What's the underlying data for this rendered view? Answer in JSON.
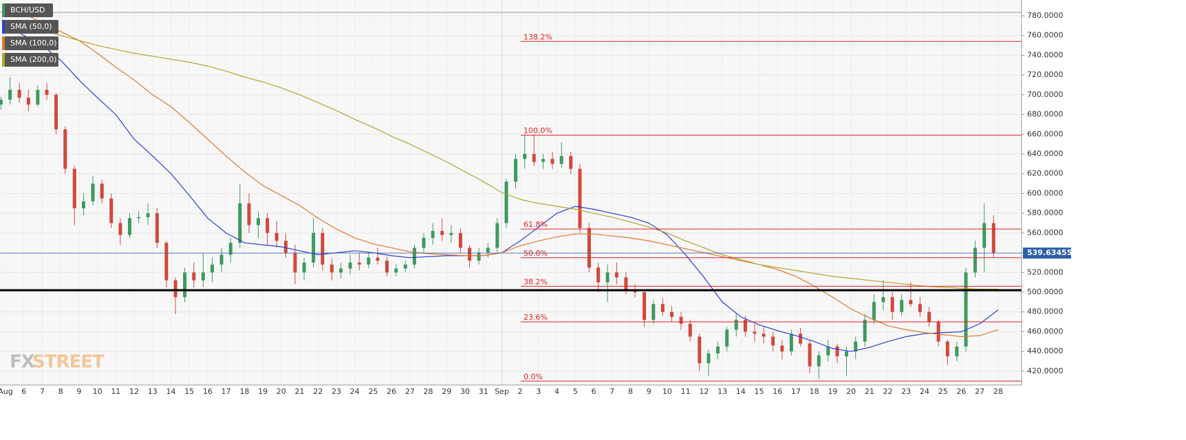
{
  "chart_data": {
    "type": "candlestick",
    "title": "BCH/USD",
    "categories": [
      "Aug",
      "6",
      "7",
      "8",
      "9",
      "10",
      "11",
      "12",
      "13",
      "14",
      "15",
      "16",
      "17",
      "18",
      "19",
      "20",
      "21",
      "22",
      "23",
      "24",
      "25",
      "26",
      "27",
      "28",
      "29",
      "30",
      "31",
      "Sep",
      "2",
      "3",
      "4",
      "5",
      "6",
      "7",
      "8",
      "9",
      "10",
      "11",
      "12",
      "13",
      "14",
      "15",
      "16",
      "17",
      "18",
      "19",
      "20",
      "21",
      "22",
      "23",
      "24",
      "25",
      "26",
      "27",
      "28"
    ],
    "ylim": [
      406,
      796
    ],
    "yticks": [
      {
        "value": 420,
        "label": "420.0000"
      },
      {
        "value": 440,
        "label": "440.0000"
      },
      {
        "value": 460,
        "label": "460.0000"
      },
      {
        "value": 480,
        "label": "480.0000"
      },
      {
        "value": 500,
        "label": "500.0000"
      },
      {
        "value": 520,
        "label": "520.0000"
      },
      {
        "value": 540,
        "label": "540.0000"
      },
      {
        "value": 560,
        "label": "560.0000"
      },
      {
        "value": 580,
        "label": "580.0000"
      },
      {
        "value": 600,
        "label": "600.0000"
      },
      {
        "value": 620,
        "label": "620.0000"
      },
      {
        "value": 640,
        "label": "640.0000"
      },
      {
        "value": 660,
        "label": "660.0000"
      },
      {
        "value": 680,
        "label": "680.0000"
      },
      {
        "value": 700,
        "label": "700.0000"
      },
      {
        "value": 720,
        "label": "720.0000"
      },
      {
        "value": 740,
        "label": "740.0000"
      },
      {
        "value": 760,
        "label": "760.0000"
      },
      {
        "value": 780,
        "label": "780.0000"
      }
    ],
    "grid": true,
    "up_color": "#3d9a5e",
    "down_color": "#d2473c",
    "ohlc": [
      [
        690,
        698,
        685,
        695
      ],
      [
        695,
        718,
        690,
        705
      ],
      [
        705,
        712,
        692,
        697
      ],
      [
        697,
        705,
        683,
        690
      ],
      [
        690,
        710,
        688,
        705
      ],
      [
        705,
        712,
        695,
        700
      ],
      [
        700,
        702,
        660,
        665
      ],
      [
        665,
        668,
        620,
        625
      ],
      [
        625,
        628,
        568,
        585
      ],
      [
        585,
        600,
        578,
        592
      ],
      [
        592,
        618,
        588,
        610
      ],
      [
        610,
        614,
        590,
        595
      ],
      [
        595,
        600,
        565,
        570
      ],
      [
        570,
        575,
        548,
        558
      ],
      [
        558,
        580,
        555,
        575
      ],
      [
        575,
        582,
        570,
        576
      ],
      [
        576,
        590,
        568,
        580
      ],
      [
        580,
        585,
        545,
        550
      ],
      [
        550,
        552,
        505,
        512
      ],
      [
        512,
        515,
        478,
        495
      ],
      [
        495,
        525,
        490,
        520
      ],
      [
        520,
        530,
        505,
        512
      ],
      [
        512,
        540,
        505,
        520
      ],
      [
        520,
        535,
        510,
        528
      ],
      [
        528,
        545,
        520,
        538
      ],
      [
        538,
        555,
        530,
        550
      ],
      [
        550,
        610,
        545,
        590
      ],
      [
        590,
        600,
        560,
        568
      ],
      [
        568,
        582,
        555,
        575
      ],
      [
        575,
        580,
        548,
        560
      ],
      [
        560,
        572,
        545,
        552
      ],
      [
        552,
        560,
        535,
        540
      ],
      [
        540,
        548,
        508,
        520
      ],
      [
        520,
        535,
        512,
        530
      ],
      [
        530,
        575,
        525,
        560
      ],
      [
        560,
        565,
        522,
        528
      ],
      [
        528,
        534,
        512,
        520
      ],
      [
        520,
        530,
        514,
        524
      ],
      [
        524,
        538,
        518,
        530
      ],
      [
        530,
        540,
        522,
        528
      ],
      [
        528,
        540,
        524,
        535
      ],
      [
        535,
        545,
        528,
        532
      ],
      [
        532,
        536,
        516,
        520
      ],
      [
        520,
        528,
        516,
        524
      ],
      [
        524,
        532,
        520,
        528
      ],
      [
        528,
        548,
        524,
        545
      ],
      [
        545,
        560,
        540,
        555
      ],
      [
        555,
        570,
        548,
        562
      ],
      [
        562,
        575,
        552,
        558
      ],
      [
        558,
        568,
        550,
        560
      ],
      [
        560,
        565,
        540,
        545
      ],
      [
        545,
        548,
        525,
        532
      ],
      [
        532,
        545,
        528,
        540
      ],
      [
        540,
        550,
        535,
        545
      ],
      [
        545,
        575,
        540,
        570
      ],
      [
        570,
        615,
        565,
        612
      ],
      [
        612,
        640,
        605,
        635
      ],
      [
        635,
        660,
        625,
        640
      ],
      [
        640,
        660,
        628,
        632
      ],
      [
        632,
        640,
        625,
        635
      ],
      [
        635,
        642,
        625,
        630
      ],
      [
        630,
        652,
        626,
        638
      ],
      [
        638,
        642,
        620,
        625
      ],
      [
        625,
        630,
        560,
        565
      ],
      [
        565,
        570,
        520,
        525
      ],
      [
        525,
        530,
        500,
        510
      ],
      [
        510,
        528,
        490,
        520
      ],
      [
        520,
        530,
        508,
        515
      ],
      [
        515,
        520,
        498,
        502
      ],
      [
        502,
        508,
        495,
        500
      ],
      [
        500,
        502,
        465,
        472
      ],
      [
        472,
        492,
        468,
        488
      ],
      [
        488,
        494,
        476,
        480
      ],
      [
        480,
        486,
        470,
        475
      ],
      [
        475,
        480,
        462,
        468
      ],
      [
        468,
        472,
        450,
        455
      ],
      [
        455,
        458,
        420,
        428
      ],
      [
        428,
        442,
        415,
        438
      ],
      [
        438,
        450,
        432,
        445
      ],
      [
        445,
        465,
        440,
        462
      ],
      [
        462,
        478,
        455,
        472
      ],
      [
        472,
        476,
        455,
        460
      ],
      [
        460,
        468,
        450,
        458
      ],
      [
        458,
        465,
        448,
        455
      ],
      [
        455,
        460,
        440,
        446
      ],
      [
        446,
        452,
        432,
        440
      ],
      [
        440,
        462,
        436,
        458
      ],
      [
        458,
        464,
        445,
        448
      ],
      [
        448,
        452,
        418,
        425
      ],
      [
        425,
        440,
        412,
        436
      ],
      [
        436,
        452,
        430,
        445
      ],
      [
        445,
        448,
        428,
        435
      ],
      [
        435,
        445,
        415,
        440
      ],
      [
        440,
        455,
        432,
        450
      ],
      [
        450,
        478,
        445,
        472
      ],
      [
        472,
        498,
        468,
        490
      ],
      [
        490,
        512,
        482,
        495
      ],
      [
        495,
        500,
        472,
        480
      ],
      [
        480,
        498,
        476,
        492
      ],
      [
        492,
        510,
        485,
        488
      ],
      [
        488,
        495,
        475,
        480
      ],
      [
        480,
        485,
        465,
        470
      ],
      [
        470,
        472,
        445,
        450
      ],
      [
        450,
        452,
        426,
        435
      ],
      [
        435,
        450,
        430,
        445
      ],
      [
        445,
        525,
        440,
        520
      ],
      [
        520,
        552,
        515,
        545
      ],
      [
        545,
        590,
        520,
        570
      ],
      [
        570,
        578,
        535,
        539.63455
      ]
    ],
    "series": [
      {
        "name": "SMA (50,0)",
        "color": "#2b3ed6",
        "values": [
          772,
          760,
          750,
          735,
          715,
          697,
          680,
          655,
          638,
          620,
          598,
          575,
          560,
          550,
          548,
          546,
          542,
          538,
          540,
          542,
          540,
          537,
          535,
          536,
          537,
          537,
          537,
          540,
          552,
          566,
          580,
          587,
          584,
          580,
          576,
          570,
          558,
          538,
          515,
          490,
          475,
          467,
          461,
          456,
          450,
          443,
          440,
          444,
          450,
          455,
          458,
          459,
          460,
          468,
          482
        ]
      },
      {
        "name": "SMA (100,0)",
        "color": "#e2762a",
        "values": [
          790,
          782,
          773,
          764,
          755,
          742,
          728,
          715,
          700,
          688,
          672,
          655,
          638,
          622,
          608,
          598,
          588,
          575,
          564,
          555,
          549,
          545,
          541,
          539,
          538,
          537,
          537,
          540,
          547,
          552,
          556,
          559,
          559,
          557,
          555,
          552,
          548,
          544,
          540,
          536,
          532,
          528,
          523,
          516,
          506,
          495,
          483,
          474,
          466,
          462,
          459,
          457,
          455,
          456,
          462
        ]
      },
      {
        "name": "SMA (200,0)",
        "color": "#b2a52a",
        "values": [
          772,
          770,
          766,
          760,
          755,
          750,
          746,
          742,
          739,
          736,
          733,
          729,
          724,
          718,
          713,
          707,
          700,
          692,
          684,
          675,
          667,
          658,
          650,
          641,
          632,
          622,
          612,
          601,
          594,
          590,
          587,
          584,
          580,
          576,
          571,
          566,
          560,
          552,
          545,
          538,
          533,
          528,
          525,
          522,
          519,
          516,
          514,
          512,
          510,
          508,
          506,
          505,
          504,
          503,
          503
        ]
      }
    ],
    "fib_color": "#e02020",
    "fib_levels": [
      {
        "label": "138.2%",
        "value": 754
      },
      {
        "label": "100.0%",
        "value": 659
      },
      {
        "label": "61.8%",
        "value": 564
      },
      {
        "label": "50.0%",
        "value": 535
      },
      {
        "label": "38.2%",
        "value": 506
      },
      {
        "label": "23.6%",
        "value": 470
      },
      {
        "label": "0.0%",
        "value": 410
      }
    ],
    "support_level": 502,
    "last_price": 539.63455,
    "last_price_color": "#2e5fa8",
    "watermark": [
      "FX",
      "STREET"
    ]
  }
}
